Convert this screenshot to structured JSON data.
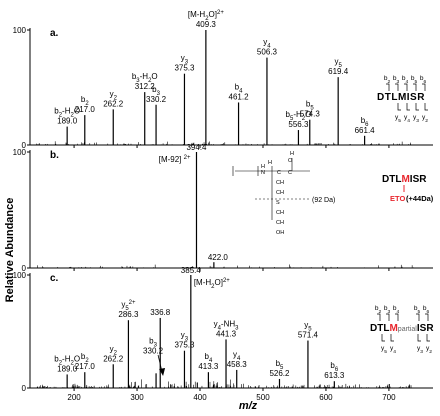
{
  "figure": {
    "ylabel": "Relative Abundance",
    "xlabel": "m/z",
    "x_ticks": [
      200,
      300,
      400,
      500,
      600,
      700
    ],
    "xlim": [
      130,
      770
    ]
  },
  "chart_data": [
    {
      "type": "bar",
      "panel": "a.",
      "ylim": [
        0,
        100
      ],
      "y_ticks": [
        0,
        100
      ],
      "peaks": [
        {
          "mz": 189.0,
          "rel": 16,
          "labels": [
            "b2-H2O",
            "189.0"
          ]
        },
        {
          "mz": 217.0,
          "rel": 26,
          "labels": [
            "b2",
            "217.0"
          ]
        },
        {
          "mz": 262.2,
          "rel": 31,
          "labels": [
            "y2",
            "262.2"
          ]
        },
        {
          "mz": 312.2,
          "rel": 46,
          "labels": [
            "b3-H2O",
            "312.2"
          ]
        },
        {
          "mz": 330.2,
          "rel": 35,
          "labels": [
            "b3",
            "330.2"
          ]
        },
        {
          "mz": 375.3,
          "rel": 62,
          "labels": [
            "y3",
            "375.3"
          ]
        },
        {
          "mz": 409.3,
          "rel": 100,
          "labels": [
            "[M-H2O]2+",
            "409.3"
          ]
        },
        {
          "mz": 461.2,
          "rel": 37,
          "labels": [
            "b4",
            "461.2"
          ]
        },
        {
          "mz": 506.3,
          "rel": 76,
          "labels": [
            "y4",
            "506.3"
          ]
        },
        {
          "mz": 556.3,
          "rel": 13,
          "labels": [
            "b5-H2O",
            "556.3"
          ]
        },
        {
          "mz": 574.3,
          "rel": 22,
          "labels": [
            "b5",
            "574.3"
          ]
        },
        {
          "mz": 619.4,
          "rel": 59,
          "labels": [
            "y5",
            "619.4"
          ]
        },
        {
          "mz": 661.4,
          "rel": 8,
          "labels": [
            "b6",
            "661.4"
          ]
        }
      ],
      "annotation": {
        "b_series": [
          "b2",
          "b3",
          "b4",
          "b5",
          "b6"
        ],
        "sequence": "DTLMISR",
        "y_series": [
          "y5",
          "y4",
          "y3",
          "y2"
        ]
      }
    },
    {
      "type": "bar",
      "panel": "b.",
      "ylim": [
        0,
        100
      ],
      "y_ticks": [
        0,
        100
      ],
      "peaks": [
        {
          "mz": 394.4,
          "rel": 100,
          "labels": [
            "394.4",
            "[M-92] 2+"
          ]
        },
        {
          "mz": 422.0,
          "rel": 5,
          "labels": [
            "422.0"
          ]
        }
      ],
      "structure_note": "(92 Da)",
      "annotation": {
        "sequence": "DTLMISR",
        "modification": "ETO",
        "mass_shift": "(+44Da)"
      }
    },
    {
      "type": "bar",
      "panel": "c.",
      "ylim": [
        0,
        100
      ],
      "y_ticks": [
        0,
        100
      ],
      "peaks": [
        {
          "mz": 189.0,
          "rel": 12,
          "labels": [
            "b2-H2O",
            "189.0"
          ]
        },
        {
          "mz": 217.0,
          "rel": 14,
          "labels": [
            "b2",
            "217.0"
          ]
        },
        {
          "mz": 262.2,
          "rel": 21,
          "labels": [
            "y2",
            "262.2"
          ]
        },
        {
          "mz": 286.3,
          "rel": 60,
          "labels": [
            "y5 2+",
            "286.3"
          ]
        },
        {
          "mz": 330.2,
          "rel": 13,
          "labels": [
            "b3",
            "330.2"
          ]
        },
        {
          "mz": 336.8,
          "rel": 62,
          "labels": [
            "336.8"
          ]
        },
        {
          "mz": 375.3,
          "rel": 33,
          "labels": [
            "y3",
            "375.3"
          ]
        },
        {
          "mz": 385.4,
          "rel": 100,
          "labels": [
            "385.4",
            "[M-H2O]2+"
          ]
        },
        {
          "mz": 413.3,
          "rel": 14,
          "labels": [
            "b4",
            "413.3"
          ]
        },
        {
          "mz": 441.3,
          "rel": 43,
          "labels": [
            "y4-NH3",
            "441.3"
          ]
        },
        {
          "mz": 458.3,
          "rel": 16,
          "labels": [
            "y4",
            "458.3"
          ]
        },
        {
          "mz": 526.2,
          "rel": 8,
          "labels": [
            "b5",
            "526.2"
          ]
        },
        {
          "mz": 571.4,
          "rel": 42,
          "labels": [
            "y5",
            "571.4"
          ]
        },
        {
          "mz": 613.3,
          "rel": 6,
          "labels": [
            "b6",
            "613.3"
          ]
        }
      ],
      "annotation": {
        "b_series_left": [
          "b2",
          "b3",
          "b4"
        ],
        "b_series_right": [
          "b5",
          "b6"
        ],
        "sequence_left": "DTLM",
        "partial": "partial",
        "sequence_right": "ISR",
        "y_series_left": [
          "y5",
          "y4"
        ],
        "y_series_right": [
          "y3",
          "y2"
        ]
      }
    }
  ],
  "colors": {
    "highlight": "#e8262d",
    "ink": "#000000"
  }
}
